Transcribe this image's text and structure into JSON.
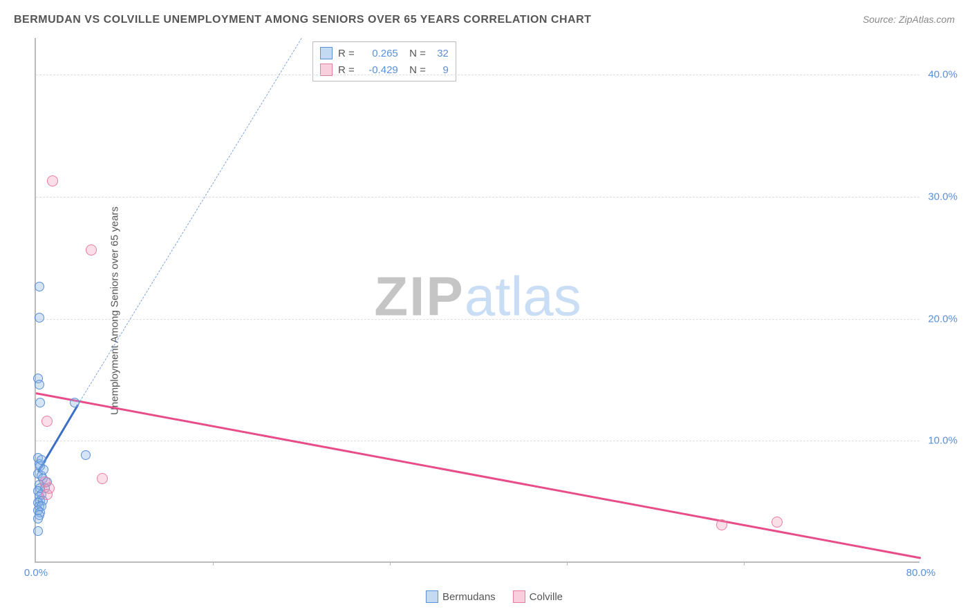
{
  "title": "BERMUDAN VS COLVILLE UNEMPLOYMENT AMONG SENIORS OVER 65 YEARS CORRELATION CHART",
  "source": "Source: ZipAtlas.com",
  "ylabel": "Unemployment Among Seniors over 65 years",
  "watermark": {
    "zip": "ZIP",
    "atlas": "atlas"
  },
  "chart": {
    "type": "scatter",
    "xlim": [
      0,
      80
    ],
    "ylim": [
      0,
      43
    ],
    "xtick_labels": [
      {
        "value": 0,
        "label": "0.0%"
      },
      {
        "value": 80,
        "label": "80.0%"
      }
    ],
    "xtick_marks": [
      16,
      32,
      48,
      64
    ],
    "ytick_labels": [
      {
        "value": 10,
        "label": "10.0%"
      },
      {
        "value": 20,
        "label": "20.0%"
      },
      {
        "value": 30,
        "label": "30.0%"
      },
      {
        "value": 40,
        "label": "40.0%"
      }
    ],
    "gridlines_h": [
      10,
      20,
      30,
      40
    ],
    "grid_color": "#dddddd",
    "axis_color": "#bbbbbb",
    "background_color": "#ffffff",
    "series": [
      {
        "name": "Bermudans",
        "color": "#5b8fd6",
        "fill": "rgba(137,180,230,0.35)",
        "marker_size": 14,
        "points": [
          [
            0.3,
            22.5
          ],
          [
            0.3,
            20.0
          ],
          [
            0.2,
            15.0
          ],
          [
            0.3,
            14.5
          ],
          [
            0.4,
            13.0
          ],
          [
            3.5,
            13.0
          ],
          [
            0.2,
            8.5
          ],
          [
            4.5,
            8.7
          ],
          [
            0.3,
            8.0
          ],
          [
            0.4,
            7.8
          ],
          [
            0.2,
            7.2
          ],
          [
            0.5,
            7.0
          ],
          [
            0.6,
            6.8
          ],
          [
            1.0,
            6.5
          ],
          [
            0.3,
            6.3
          ],
          [
            0.4,
            6.0
          ],
          [
            0.8,
            6.0
          ],
          [
            0.2,
            5.8
          ],
          [
            0.5,
            5.5
          ],
          [
            0.3,
            5.3
          ],
          [
            0.4,
            5.0
          ],
          [
            0.6,
            5.0
          ],
          [
            0.2,
            4.8
          ],
          [
            0.3,
            4.5
          ],
          [
            0.5,
            4.5
          ],
          [
            0.2,
            4.2
          ],
          [
            0.4,
            4.0
          ],
          [
            0.3,
            3.8
          ],
          [
            0.2,
            3.5
          ],
          [
            0.2,
            2.5
          ],
          [
            0.5,
            8.3
          ],
          [
            0.7,
            7.5
          ]
        ],
        "trend": {
          "solid": {
            "x1": 0.2,
            "y1": 7.5,
            "x2": 3.8,
            "y2": 13.0
          },
          "dashed": {
            "x1": 3.8,
            "y1": 13.0,
            "x2": 24,
            "y2": 43
          }
        },
        "R": "0.265",
        "N": "32"
      },
      {
        "name": "Colville",
        "color": "#e57ba5",
        "fill": "rgba(240,150,180,0.3)",
        "marker_size": 16,
        "points": [
          [
            1.5,
            31.2
          ],
          [
            5.0,
            25.5
          ],
          [
            6.0,
            6.8
          ],
          [
            1.0,
            11.5
          ],
          [
            0.8,
            6.5
          ],
          [
            1.2,
            6.0
          ],
          [
            1.0,
            5.5
          ],
          [
            62,
            3.0
          ],
          [
            67,
            3.2
          ]
        ],
        "trend": {
          "solid": {
            "x1": 0,
            "y1": 14.0,
            "x2": 80,
            "y2": 0.5
          }
        },
        "R": "-0.429",
        "N": "9"
      }
    ]
  },
  "legend": {
    "items": [
      {
        "name": "Bermudans",
        "class": "blue"
      },
      {
        "name": "Colville",
        "class": "pink"
      }
    ]
  }
}
